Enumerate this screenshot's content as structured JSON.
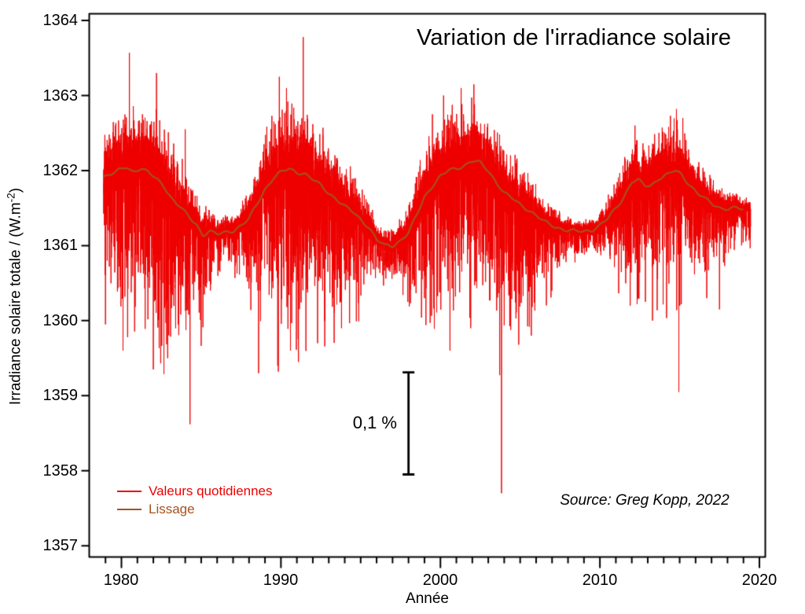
{
  "title": "Variation de l'irradiance solaire",
  "axes": {
    "x_label": "Année",
    "y_label_prefix": "Irradiance solaire totale / (W.m",
    "y_label_sup": "-2",
    "y_label_suffix": ")",
    "x_range": [
      1977.98,
      2020.37
    ],
    "y_range": [
      1356.85,
      1364.09
    ],
    "x_ticks_major": [
      1980,
      1990,
      2000,
      2010,
      2020
    ],
    "x_minor_from": 1979,
    "x_minor_to": 2020,
    "y_ticks": [
      1357,
      1358,
      1359,
      1360,
      1361,
      1362,
      1363,
      1364
    ]
  },
  "legend": {
    "items": [
      {
        "label": "Valeurs quotidiennes",
        "color": "#ee0000"
      },
      {
        "label": "Lissage",
        "color": "#a6511e"
      }
    ]
  },
  "annotations": {
    "scale_bar": {
      "label": "0,1 %",
      "year": 1998.0,
      "v_top": 1359.31,
      "v_bottom": 1357.95
    },
    "source": "Source: Greg Kopp, 2022"
  },
  "colors": {
    "daily": "#ee0000",
    "smooth": "#a6511e",
    "axis": "#000000",
    "background": "#ffffff"
  },
  "chart_data": {
    "type": "line",
    "title": "Variation de l'irradiance solaire",
    "xlabel": "Année",
    "ylabel": "Irradiance solaire totale / (W.m-2)",
    "xlim": [
      1977.98,
      2020.37
    ],
    "ylim": [
      1356.85,
      1364.09
    ],
    "x_start": 1978.88,
    "x_end": 2019.45,
    "series": [
      {
        "name": "Valeurs quotidiennes",
        "kind": "daily-values",
        "color": "#ee0000"
      },
      {
        "name": "Lissage",
        "kind": "smoothed",
        "color": "#a6511e"
      }
    ],
    "smoothed_knots": [
      [
        1978.88,
        1361.92
      ],
      [
        1979.3,
        1361.96
      ],
      [
        1979.8,
        1362.0
      ],
      [
        1980.3,
        1362.04
      ],
      [
        1980.7,
        1361.98
      ],
      [
        1981.2,
        1362.04
      ],
      [
        1981.7,
        1361.98
      ],
      [
        1982.2,
        1361.88
      ],
      [
        1982.7,
        1361.78
      ],
      [
        1983.2,
        1361.62
      ],
      [
        1983.7,
        1361.52
      ],
      [
        1984.2,
        1361.38
      ],
      [
        1984.7,
        1361.28
      ],
      [
        1985.1,
        1361.14
      ],
      [
        1985.5,
        1361.2
      ],
      [
        1986.0,
        1361.15
      ],
      [
        1986.5,
        1361.17
      ],
      [
        1987.0,
        1361.2
      ],
      [
        1987.5,
        1361.27
      ],
      [
        1988.0,
        1361.36
      ],
      [
        1988.5,
        1361.55
      ],
      [
        1989.0,
        1361.75
      ],
      [
        1989.5,
        1361.9
      ],
      [
        1990.0,
        1361.98
      ],
      [
        1990.5,
        1362.02
      ],
      [
        1991.0,
        1361.98
      ],
      [
        1991.5,
        1361.96
      ],
      [
        1992.0,
        1361.88
      ],
      [
        1992.5,
        1361.8
      ],
      [
        1993.0,
        1361.7
      ],
      [
        1993.5,
        1361.62
      ],
      [
        1994.0,
        1361.52
      ],
      [
        1994.5,
        1361.45
      ],
      [
        1995.0,
        1361.35
      ],
      [
        1995.5,
        1361.25
      ],
      [
        1996.0,
        1361.08
      ],
      [
        1996.5,
        1361.0
      ],
      [
        1997.0,
        1361.0
      ],
      [
        1997.5,
        1361.07
      ],
      [
        1998.0,
        1361.17
      ],
      [
        1998.5,
        1361.4
      ],
      [
        1999.0,
        1361.65
      ],
      [
        1999.5,
        1361.8
      ],
      [
        2000.0,
        1361.92
      ],
      [
        2000.5,
        1362.0
      ],
      [
        2001.0,
        1362.03
      ],
      [
        2001.5,
        1362.07
      ],
      [
        2002.0,
        1362.13
      ],
      [
        2002.5,
        1362.1
      ],
      [
        2003.0,
        1362.0
      ],
      [
        2003.5,
        1361.85
      ],
      [
        2004.0,
        1361.7
      ],
      [
        2004.5,
        1361.63
      ],
      [
        2005.0,
        1361.55
      ],
      [
        2005.5,
        1361.48
      ],
      [
        2006.0,
        1361.4
      ],
      [
        2006.5,
        1361.32
      ],
      [
        2007.0,
        1361.27
      ],
      [
        2007.5,
        1361.23
      ],
      [
        2008.0,
        1361.2
      ],
      [
        2008.5,
        1361.19
      ],
      [
        2009.0,
        1361.19
      ],
      [
        2009.5,
        1361.21
      ],
      [
        2010.0,
        1361.27
      ],
      [
        2010.5,
        1361.36
      ],
      [
        2011.0,
        1361.5
      ],
      [
        2011.5,
        1361.65
      ],
      [
        2012.0,
        1361.85
      ],
      [
        2012.4,
        1361.87
      ],
      [
        2012.8,
        1361.8
      ],
      [
        2013.2,
        1361.8
      ],
      [
        2013.7,
        1361.9
      ],
      [
        2014.2,
        1361.94
      ],
      [
        2014.7,
        1362.0
      ],
      [
        2015.1,
        1361.95
      ],
      [
        2015.6,
        1361.82
      ],
      [
        2016.1,
        1361.7
      ],
      [
        2016.6,
        1361.62
      ],
      [
        2017.1,
        1361.55
      ],
      [
        2017.6,
        1361.5
      ],
      [
        2018.1,
        1361.49
      ],
      [
        2018.6,
        1361.5
      ],
      [
        2019.0,
        1361.48
      ]
    ],
    "daily_envelope": [
      [
        1978.88,
        0.6,
        1.0
      ],
      [
        1979.8,
        0.8,
        1.7
      ],
      [
        1980.8,
        0.9,
        1.9
      ],
      [
        1981.8,
        0.95,
        2.1
      ],
      [
        1982.8,
        0.8,
        2.1
      ],
      [
        1983.8,
        0.65,
        1.7
      ],
      [
        1984.8,
        0.45,
        1.3
      ],
      [
        1985.8,
        0.25,
        0.5
      ],
      [
        1986.8,
        0.22,
        0.4
      ],
      [
        1987.8,
        0.35,
        0.8
      ],
      [
        1988.8,
        0.7,
        1.5
      ],
      [
        1989.8,
        0.9,
        2.0
      ],
      [
        1990.8,
        0.95,
        1.9
      ],
      [
        1991.8,
        0.9,
        1.9
      ],
      [
        1992.8,
        0.75,
        1.7
      ],
      [
        1993.8,
        0.7,
        1.5
      ],
      [
        1994.8,
        0.5,
        1.1
      ],
      [
        1995.8,
        0.3,
        0.6
      ],
      [
        1996.8,
        0.2,
        0.35
      ],
      [
        1997.8,
        0.35,
        0.6
      ],
      [
        1998.8,
        0.7,
        1.2
      ],
      [
        1999.8,
        0.8,
        1.6
      ],
      [
        2000.8,
        0.85,
        1.8
      ],
      [
        2001.8,
        0.85,
        1.7
      ],
      [
        2002.8,
        0.8,
        1.7
      ],
      [
        2003.8,
        0.7,
        1.9
      ],
      [
        2004.8,
        0.6,
        1.5
      ],
      [
        2005.8,
        0.45,
        1.3
      ],
      [
        2006.8,
        0.3,
        0.8
      ],
      [
        2007.8,
        0.2,
        0.4
      ],
      [
        2008.8,
        0.15,
        0.3
      ],
      [
        2009.8,
        0.17,
        0.3
      ],
      [
        2010.8,
        0.35,
        0.7
      ],
      [
        2011.8,
        0.6,
        1.2
      ],
      [
        2012.8,
        0.65,
        1.3
      ],
      [
        2013.8,
        0.7,
        1.4
      ],
      [
        2014.8,
        0.75,
        1.5
      ],
      [
        2015.8,
        0.55,
        1.1
      ],
      [
        2016.8,
        0.4,
        0.9
      ],
      [
        2017.8,
        0.25,
        0.6
      ],
      [
        2018.8,
        0.18,
        0.35
      ],
      [
        2019.45,
        0.15,
        0.45
      ]
    ],
    "extreme_dips": [
      [
        1979.0,
        1359.95
      ],
      [
        1980.1,
        1359.6
      ],
      [
        1982.0,
        1359.35
      ],
      [
        1982.9,
        1359.5
      ],
      [
        1983.4,
        1359.9
      ],
      [
        1984.3,
        1358.62
      ],
      [
        1985.2,
        1360.35
      ],
      [
        1988.6,
        1359.3
      ],
      [
        1989.8,
        1359.4
      ],
      [
        1990.6,
        1359.6
      ],
      [
        1991.1,
        1359.45
      ],
      [
        1992.3,
        1359.7
      ],
      [
        1993.8,
        1359.9
      ],
      [
        1996.9,
        1360.75
      ],
      [
        1999.0,
        1360.3
      ],
      [
        2000.6,
        1359.6
      ],
      [
        2001.9,
        1359.9
      ],
      [
        2003.83,
        1357.7
      ],
      [
        2005.7,
        1359.8
      ],
      [
        2008.9,
        1360.9
      ],
      [
        2011.9,
        1360.2
      ],
      [
        2013.3,
        1360.0
      ],
      [
        2014.95,
        1359.05
      ],
      [
        2016.7,
        1360.3
      ],
      [
        2017.5,
        1360.15
      ],
      [
        2019.4,
        1361.1
      ]
    ],
    "extreme_peaks": [
      [
        1980.5,
        1363.57
      ],
      [
        1982.2,
        1363.3
      ],
      [
        1984.0,
        1362.55
      ],
      [
        1989.9,
        1363.25
      ],
      [
        1990.35,
        1363.1
      ],
      [
        1991.4,
        1363.78
      ],
      [
        1999.5,
        1362.75
      ],
      [
        2000.2,
        1363.0
      ],
      [
        2001.3,
        1363.1
      ],
      [
        2002.1,
        1363.15
      ],
      [
        2012.2,
        1362.6
      ],
      [
        2014.8,
        1362.82
      ],
      [
        2015.2,
        1362.7
      ]
    ]
  }
}
